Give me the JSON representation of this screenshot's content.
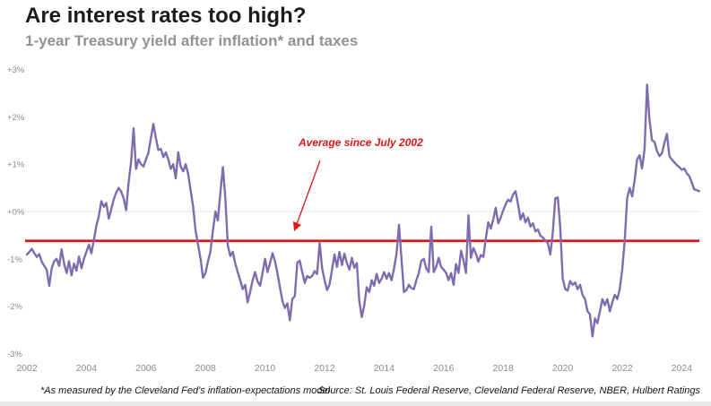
{
  "chart_data": {
    "type": "line",
    "title": "Are interest rates too high?",
    "subtitle": "1-year Treasury yield after inflation* and taxes",
    "series_name": "1-year Treasury yield after inflation and taxes",
    "unit": "percent",
    "frequency": "monthly",
    "start_month": "2002-01",
    "end_month": "2024-08",
    "values": [
      -0.91,
      -0.85,
      -0.79,
      -0.88,
      -0.96,
      -0.9,
      -1.06,
      -1.15,
      -1.23,
      -1.57,
      -1.2,
      -1.05,
      -1.0,
      -1.15,
      -0.8,
      -1.1,
      -1.3,
      -1.05,
      -1.35,
      -1.1,
      -1.25,
      -0.95,
      -1.2,
      -1.0,
      -0.85,
      -0.7,
      -0.88,
      -0.6,
      -0.3,
      -0.1,
      0.22,
      0.1,
      0.18,
      -0.15,
      0.05,
      0.25,
      0.4,
      0.5,
      0.42,
      0.28,
      0.03,
      0.6,
      1.05,
      1.76,
      0.9,
      1.1,
      1.0,
      0.95,
      1.1,
      1.25,
      1.55,
      1.85,
      1.55,
      1.3,
      1.32,
      1.15,
      1.25,
      1.1,
      0.9,
      1.0,
      0.7,
      1.25,
      0.95,
      0.85,
      1.0,
      0.8,
      0.45,
      0.1,
      -0.4,
      -0.7,
      -1.0,
      -1.4,
      -1.3,
      -1.05,
      -0.85,
      -0.4,
      0.0,
      -0.19,
      0.4,
      0.94,
      0.3,
      -0.72,
      -0.94,
      -0.85,
      -1.1,
      -1.28,
      -1.45,
      -1.64,
      -1.55,
      -1.92,
      -1.7,
      -1.45,
      -1.28,
      -1.48,
      -1.57,
      -1.3,
      -1.0,
      -1.28,
      -1.1,
      -0.88,
      -1.05,
      -1.3,
      -1.6,
      -1.89,
      -2.04,
      -1.94,
      -2.3,
      -1.85,
      -1.79,
      -1.08,
      -1.04,
      -1.28,
      -1.51,
      -1.36,
      -1.4,
      -1.36,
      -1.26,
      -1.32,
      -0.66,
      -1.19,
      -1.45,
      -1.66,
      -1.55,
      -1.23,
      -0.91,
      -1.17,
      -0.85,
      -1.13,
      -0.89,
      -1.09,
      -1.23,
      -0.98,
      -1.19,
      -1.09,
      -1.89,
      -2.23,
      -1.98,
      -1.6,
      -1.7,
      -1.45,
      -1.57,
      -1.32,
      -1.51,
      -1.42,
      -1.28,
      -1.42,
      -1.3,
      -1.45,
      -1.2,
      -0.9,
      -0.28,
      -1.0,
      -1.7,
      -1.66,
      -1.55,
      -1.62,
      -1.64,
      -1.45,
      -1.3,
      -1.04,
      -1.0,
      -1.2,
      -1.28,
      -0.32,
      -1.28,
      -1.17,
      -0.98,
      -1.17,
      -1.23,
      -1.3,
      -1.45,
      -1.3,
      -1.55,
      -1.11,
      -1.3,
      -0.83,
      -1.02,
      -1.3,
      -0.08,
      -0.98,
      -0.77,
      -0.89,
      -1.06,
      -0.92,
      -0.96,
      -0.58,
      -0.23,
      -0.36,
      -0.17,
      0.08,
      -0.25,
      -0.13,
      0.02,
      0.15,
      0.25,
      0.21,
      0.36,
      0.43,
      0.15,
      -0.17,
      -0.04,
      -0.23,
      -0.13,
      -0.32,
      -0.25,
      -0.42,
      -0.38,
      -0.51,
      -0.55,
      -0.62,
      -0.66,
      -0.91,
      -0.45,
      0.28,
      0.3,
      -0.32,
      -1.42,
      -1.64,
      -1.67,
      -1.47,
      -1.55,
      -1.5,
      -1.64,
      -1.55,
      -1.76,
      -1.85,
      -2.11,
      -2.17,
      -2.64,
      -2.26,
      -2.36,
      -2.11,
      -1.85,
      -1.98,
      -1.85,
      -2.11,
      -1.92,
      -1.76,
      -1.85,
      -1.64,
      -1.23,
      -0.6,
      0.28,
      0.5,
      0.32,
      0.66,
      1.1,
      1.19,
      0.91,
      1.32,
      2.68,
      1.94,
      1.51,
      1.47,
      1.28,
      1.17,
      1.23,
      1.45,
      1.64,
      1.17,
      1.1,
      1.04,
      0.98,
      0.94,
      0.88,
      0.91,
      0.81,
      0.75,
      0.62,
      0.47,
      0.45,
      0.43
    ],
    "line_color": "#7e6cb0",
    "average_line": {
      "label": "Average since July 2002",
      "value": -0.62,
      "color": "#e11414"
    },
    "y_axis": {
      "ticks": [
        "+3%",
        "+2%",
        "+1%",
        "+0%",
        "-1%",
        "-2%",
        "-3%"
      ],
      "tick_values": [
        3,
        2,
        1,
        0,
        -1,
        -2,
        -3
      ],
      "min": -3,
      "max": 3,
      "label": ""
    },
    "x_axis": {
      "ticks": [
        "2002",
        "2004",
        "2006",
        "2008",
        "2010",
        "2012",
        "2014",
        "2016",
        "2018",
        "2020",
        "2022",
        "2024"
      ],
      "tick_values": [
        2002,
        2004,
        2006,
        2008,
        2010,
        2012,
        2014,
        2016,
        2018,
        2020,
        2022,
        2024
      ],
      "min": 2002,
      "max": 2024.6,
      "label": ""
    },
    "grid": "zero-line-only",
    "legend": "none",
    "tick_color": "#8a8a8a"
  },
  "footer": {
    "footnote": "*As measured by the Cleveland Fed's inflation-expectations model",
    "source": "Source: St. Louis Federal Reserve, Cleveland Federal Reserve, NBER, Hulbert Ratings"
  }
}
